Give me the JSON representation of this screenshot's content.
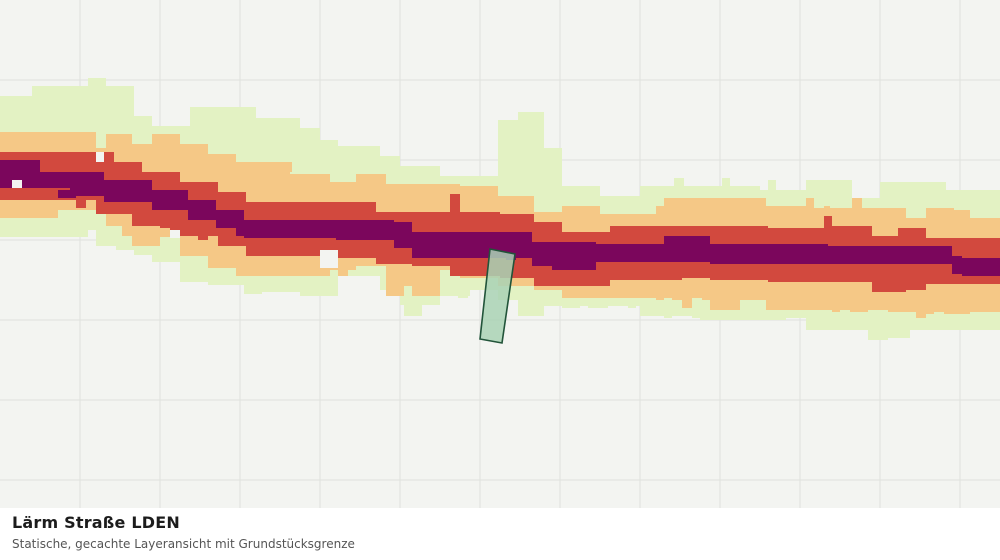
{
  "caption": {
    "title": "Lärm Straße LDEN",
    "subtitle": "Statische, gecachte Layeransicht mit Grundstücksgrenze"
  },
  "map": {
    "background_color": "#f3f4f1",
    "grid_color": "#dfe1dd",
    "noise_bands": [
      {
        "level": 1,
        "color": "#e3f2c3"
      },
      {
        "level": 2,
        "color": "#f5c886"
      },
      {
        "level": 3,
        "color": "#d2493e"
      },
      {
        "level": 4,
        "color": "#7b065c"
      }
    ],
    "parcel": {
      "fill": "#a9d2b5",
      "stroke": "#22543a"
    }
  }
}
